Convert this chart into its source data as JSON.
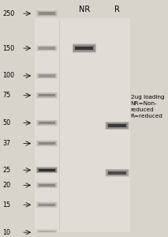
{
  "background_color": "#d8d4cc",
  "gel_background": "#dedad4",
  "fig_width": 2.13,
  "fig_height": 3.0,
  "dpi": 100,
  "title_NR": "NR",
  "title_R": "R",
  "mw_labels": [
    "250",
    "150",
    "100",
    "75",
    "50",
    "37",
    "25",
    "20",
    "15",
    "10"
  ],
  "mw_values": [
    250,
    150,
    100,
    75,
    50,
    37,
    25,
    20,
    15,
    10
  ],
  "log_scale_min": 10,
  "log_scale_max": 300,
  "ladder_band_intensities": [
    0.28,
    0.25,
    0.25,
    0.32,
    0.32,
    0.32,
    0.92,
    0.32,
    0.28,
    0.22
  ],
  "NR_bands": [
    {
      "mw": 150,
      "intensity": 0.85
    }
  ],
  "R_bands": [
    {
      "mw": 48,
      "intensity": 0.8
    },
    {
      "mw": 24,
      "intensity": 0.65
    }
  ],
  "annotation_text": "2ug loading\nNR=Non-\nreduced\nR=reduced",
  "annotation_fontsize": 5.2,
  "label_fontsize": 7.0,
  "mw_fontsize": 5.8,
  "band_color": "#1a1a1a",
  "arrow_color": "#111111"
}
